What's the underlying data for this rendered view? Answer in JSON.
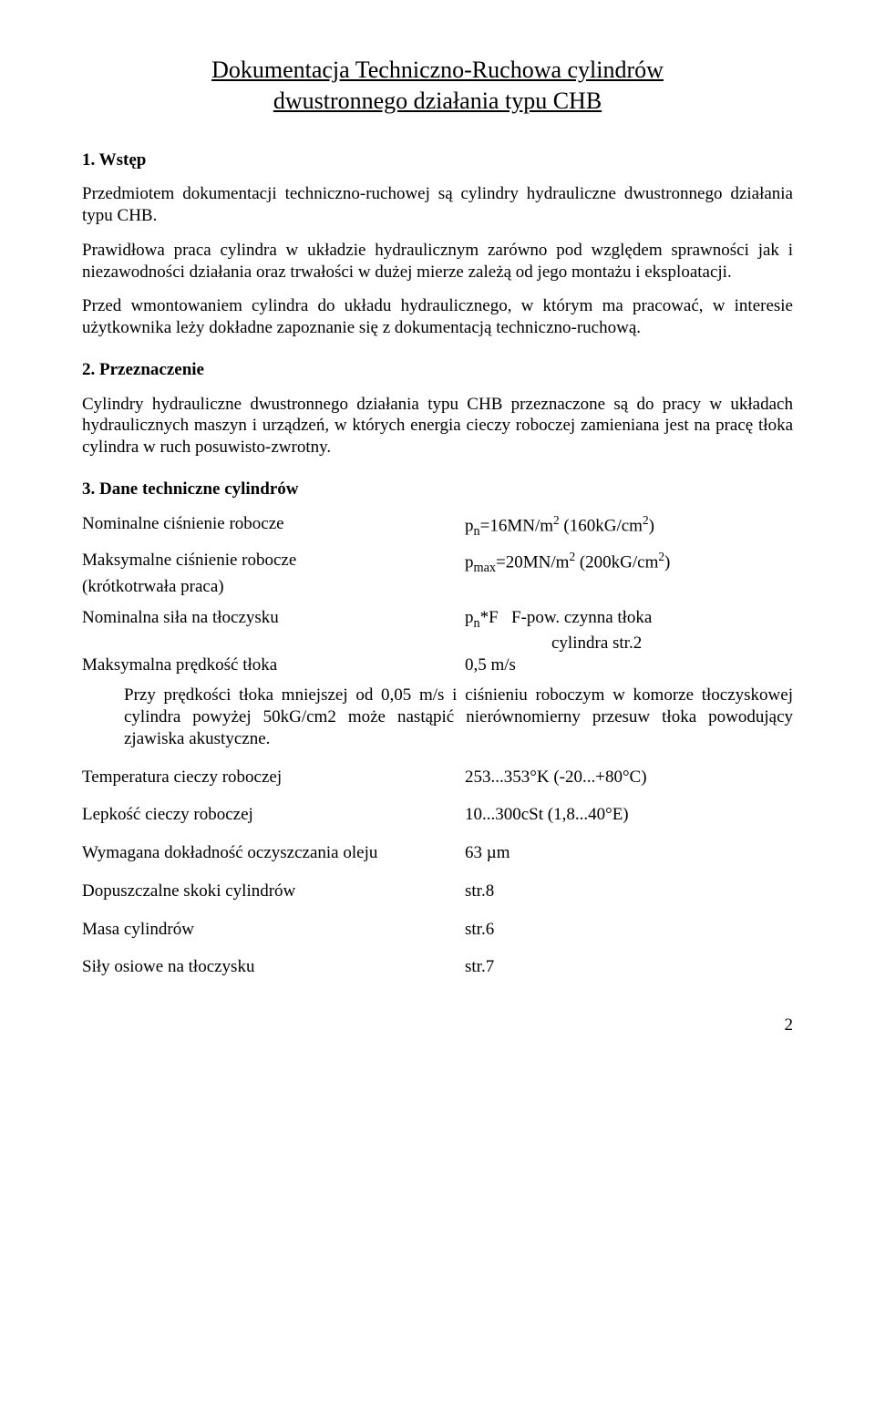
{
  "title_line1": "Dokumentacja Techniczno-Ruchowa cylindrów",
  "title_line2": "dwustronnego działania typu CHB",
  "s1": {
    "head": "1. Wstęp",
    "p1": "Przedmiotem dokumentacji techniczno-ruchowej są cylindry hydrauliczne dwustronnego działania typu CHB.",
    "p2": "Prawidłowa praca cylindra w układzie hydraulicznym zarówno pod względem sprawności jak i niezawodności działania oraz trwałości w dużej mierze zależą od jego montażu i eksploatacji.",
    "p3": "Przed wmontowaniem cylindra do układu hydraulicznego, w którym ma pracować, w interesie użytkownika leży dokładne zapoznanie się z dokumentacją techniczno-ruchową."
  },
  "s2": {
    "head": "2. Przeznaczenie",
    "p1": "Cylindry hydrauliczne dwustronnego działania typu CHB przeznaczone są do pracy w układach hydraulicznych maszyn i urządzeń, w których energia cieczy roboczej zamieniana jest na pracę tłoka cylindra w ruch posuwisto-zwrotny."
  },
  "s3": {
    "head": "3. Dane techniczne cylindrów",
    "rows": [
      {
        "label": "Nominalne ciśnienie robocze",
        "value_html": "p<sub>n</sub>=16MN/m<sup>2</sup> (160kG/cm<sup>2</sup>)"
      },
      {
        "label": "Maksymalne ciśnienie robocze",
        "sublabel": "(krótkotrwała praca)",
        "value_html": "p<sub>max</sub>=20MN/m<sup>2</sup> (200kG/cm<sup>2</sup>)"
      },
      {
        "label": "Nominalna siła na tłoczysku",
        "value_html": "p<sub>n</sub>*F&nbsp;&nbsp;&nbsp;F-pow. czynna tłoka<br>&nbsp;&nbsp;&nbsp;&nbsp;&nbsp;&nbsp;&nbsp;&nbsp;&nbsp;&nbsp;&nbsp;&nbsp;&nbsp;&nbsp;&nbsp;&nbsp;&nbsp;&nbsp;&nbsp;&nbsp;cylindra str.2"
      },
      {
        "label": "Maksymalna prędkość tłoka",
        "value": "0,5 m/s"
      }
    ],
    "note": "Przy prędkości tłoka mniejszej od 0,05 m/s i ciśnieniu roboczym w komorze tłoczyskowej cylindra powyżej 50kG/cm2 może nastąpić nierównomierny przesuw tłoka powodujący zjawiska akustyczne.",
    "rows2": [
      {
        "label": "Temperatura cieczy roboczej",
        "value": "253...353°K (-20...+80°C)"
      },
      {
        "label": "Lepkość cieczy roboczej",
        "value": "10...300cSt (1,8...40°E)"
      },
      {
        "label": "Wymagana dokładność oczyszczania oleju",
        "value": "63 µm"
      },
      {
        "label": "Dopuszczalne skoki cylindrów",
        "value": "str.8"
      },
      {
        "label": "Masa cylindrów",
        "value": "str.6"
      },
      {
        "label": "Siły osiowe na tłoczysku",
        "value": "str.7"
      }
    ]
  },
  "page_number": "2"
}
